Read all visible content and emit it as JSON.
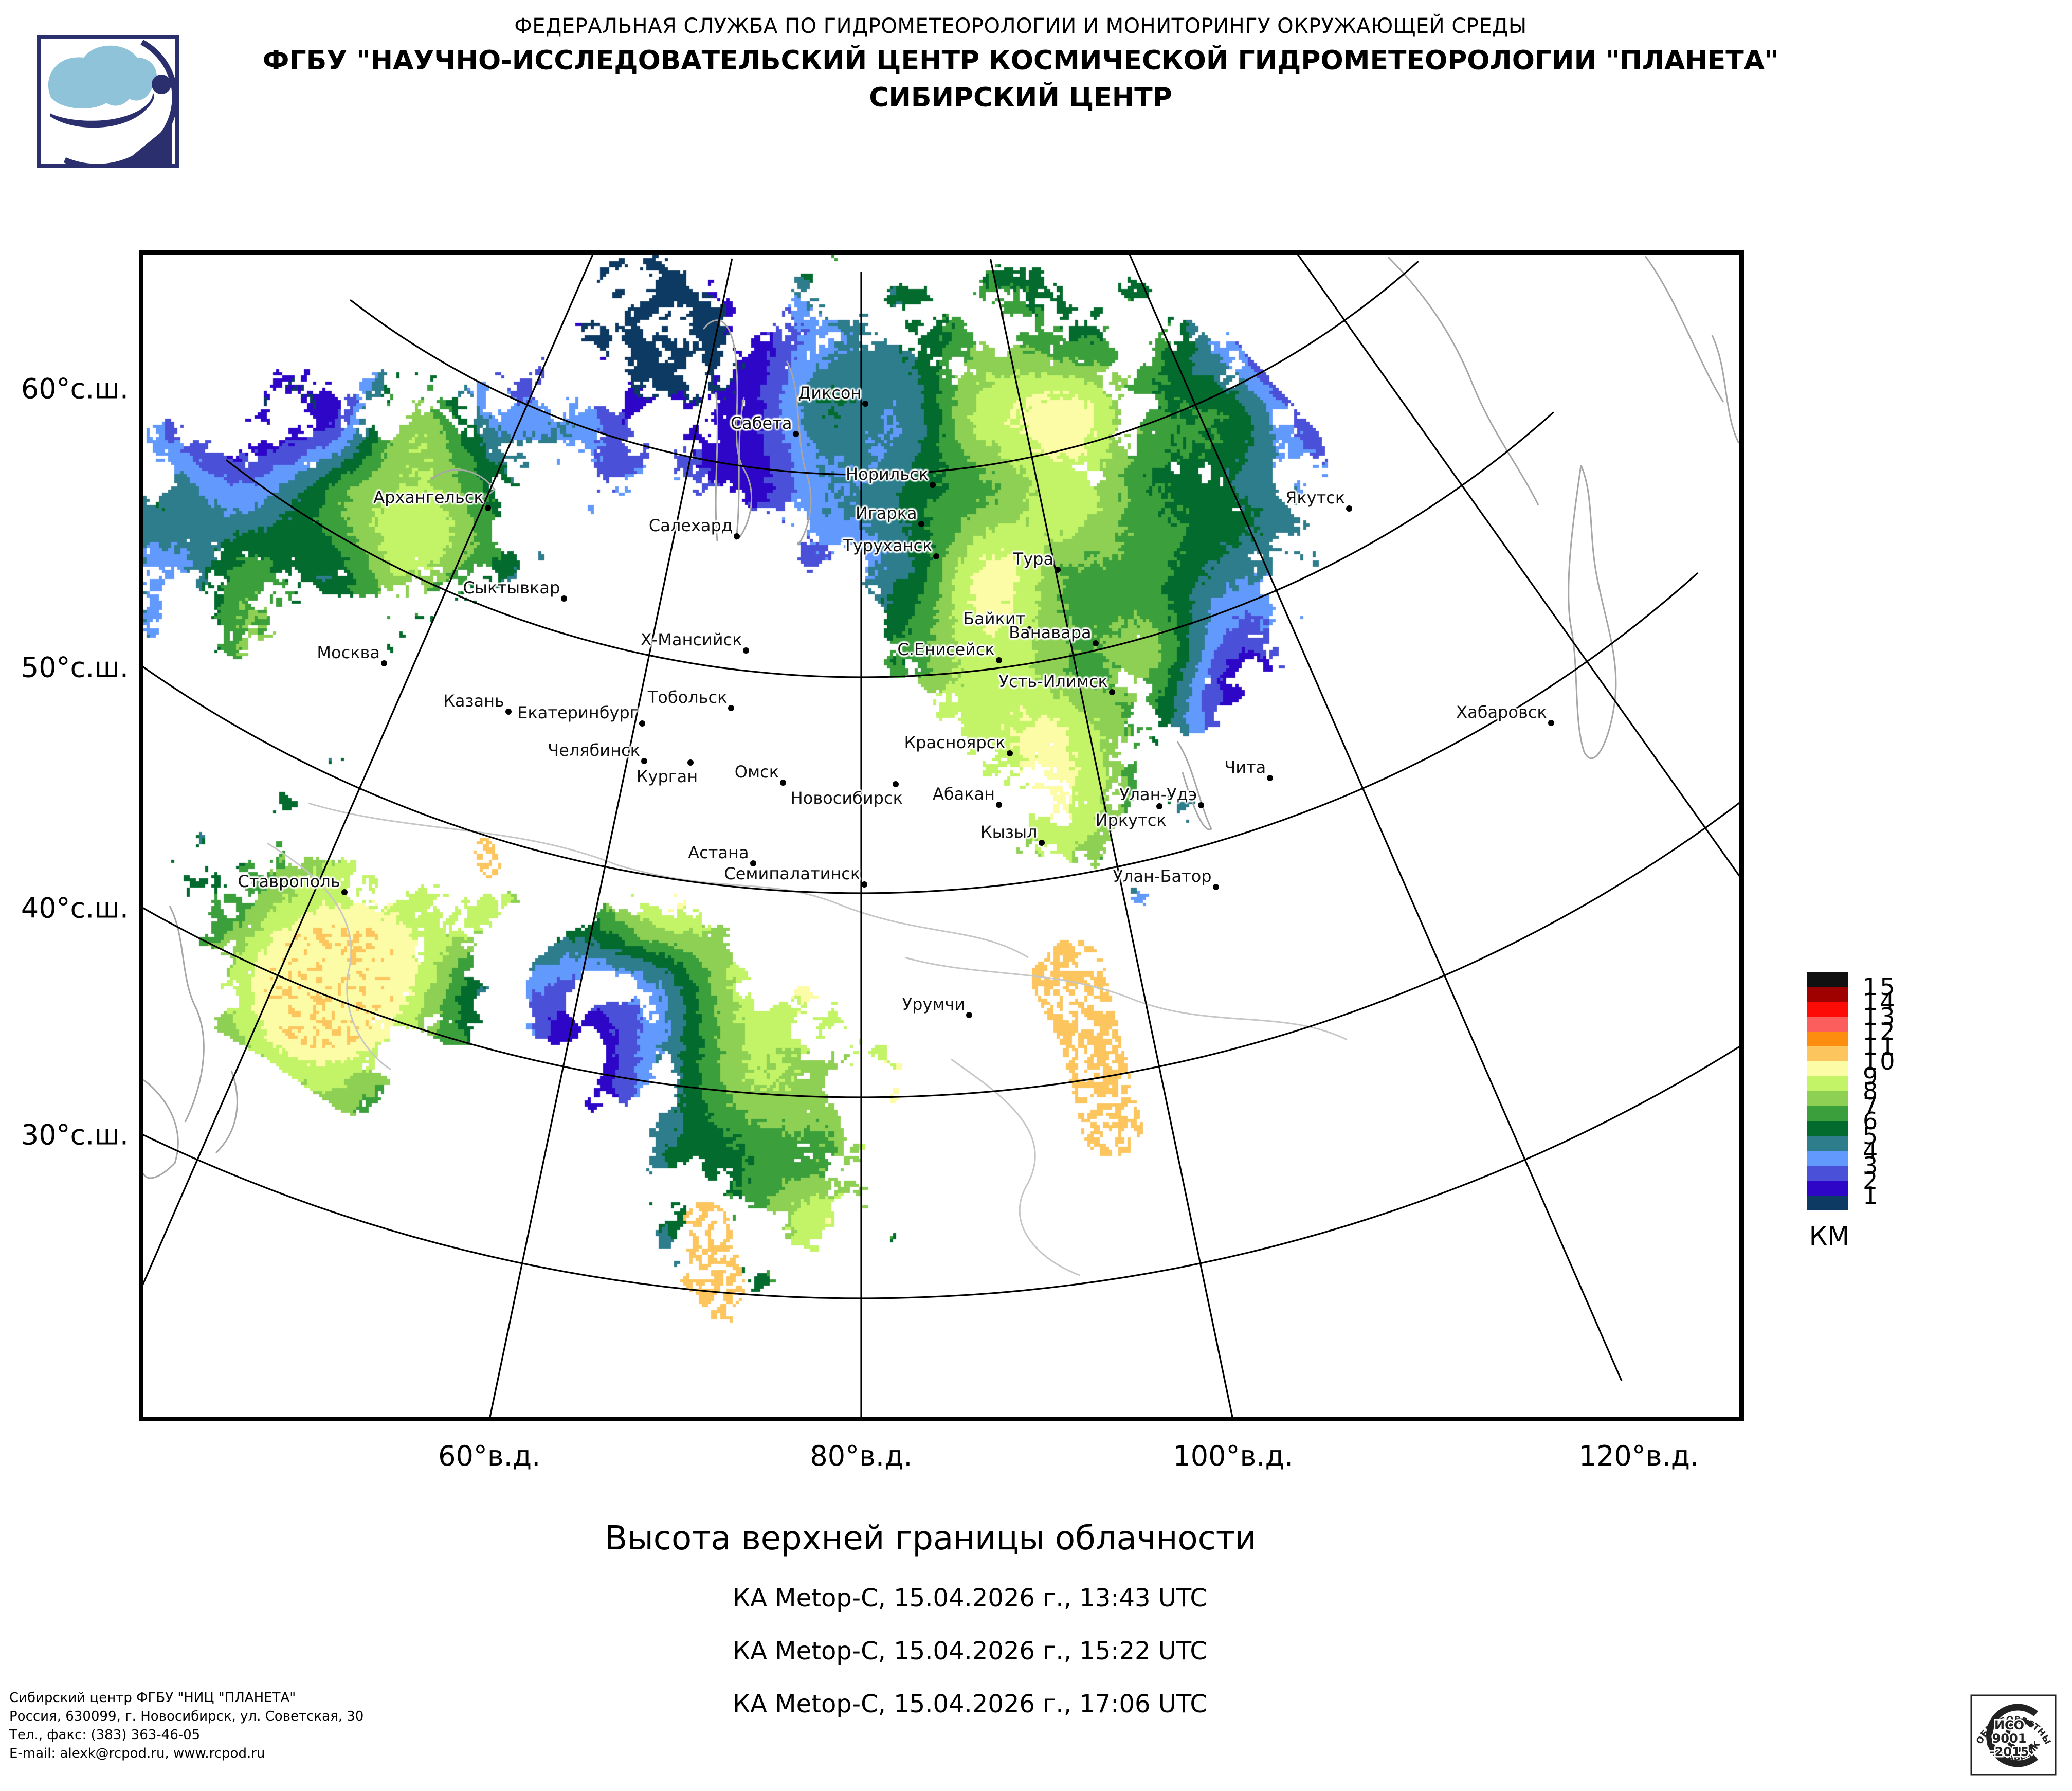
{
  "header": {
    "line1": "ФЕДЕРАЛЬНАЯ СЛУЖБА ПО ГИДРОМЕТЕОРОЛОГИИ И МОНИТОРИНГУ ОКРУЖАЮЩЕЙ СРЕДЫ",
    "line2": "ФГБУ \"НАУЧНО-ИССЛЕДОВАТЕЛЬСКИЙ ЦЕНТР КОСМИЧЕСКОЙ ГИДРОМЕТЕОРОЛОГИИ \"ПЛАНЕТА\"",
    "line3": "СИБИРСКИЙ ЦЕНТР"
  },
  "logo_colors": {
    "navy": "#2b2f6e",
    "light_blue": "#8ec3d9"
  },
  "map": {
    "lat_labels": [
      {
        "text": "60°с.ш.",
        "lat": 60
      },
      {
        "text": "50°с.ш.",
        "lat": 50
      },
      {
        "text": "40°с.ш.",
        "lat": 40
      },
      {
        "text": "30°с.ш.",
        "lat": 30
      }
    ],
    "lon_labels": [
      {
        "text": "60°в.д.",
        "lon": 60
      },
      {
        "text": "80°в.д.",
        "lon": 80
      },
      {
        "text": "100°в.д.",
        "lon": 100
      },
      {
        "text": "120°в.д.",
        "lon": 120
      }
    ],
    "cities": [
      {
        "name": "Диксон",
        "lat": 73.51,
        "lon": 80.55
      },
      {
        "name": "Сабета",
        "lat": 71.87,
        "lon": 72.06
      },
      {
        "name": "Норильск",
        "lat": 69.35,
        "lon": 88.2
      },
      {
        "name": "Игарка",
        "lat": 67.47,
        "lon": 86.58
      },
      {
        "name": "Туруханск",
        "lat": 65.8,
        "lon": 87.96
      },
      {
        "name": "Тура",
        "lat": 64.28,
        "lon": 100.22
      },
      {
        "name": "Якутск",
        "lat": 62.03,
        "lon": 129.73
      },
      {
        "name": "Архангельск",
        "lat": 64.55,
        "lon": 40.54
      },
      {
        "name": "Салехард",
        "lat": 66.53,
        "lon": 66.6
      },
      {
        "name": "Сыктывкар",
        "lat": 61.67,
        "lon": 50.81
      },
      {
        "name": "Байкит",
        "lat": 61.67,
        "lon": 96.37
      },
      {
        "name": "Ванавара",
        "lat": 60.34,
        "lon": 102.28
      },
      {
        "name": "Москва",
        "lat": 55.75,
        "lon": 37.62
      },
      {
        "name": "Х-Мансийск",
        "lat": 61.0,
        "lon": 69.0
      },
      {
        "name": "С.Енисейск",
        "lat": 60.37,
        "lon": 93.03
      },
      {
        "name": "Усть-Илимск",
        "lat": 57.94,
        "lon": 102.73
      },
      {
        "name": "Казань",
        "lat": 55.79,
        "lon": 49.11
      },
      {
        "name": "Екатеринбург",
        "lat": 56.84,
        "lon": 60.65
      },
      {
        "name": "Тобольск",
        "lat": 58.2,
        "lon": 68.25
      },
      {
        "name": "Хабаровск",
        "lat": 48.48,
        "lon": 135.08
      },
      {
        "name": "Челябинск",
        "lat": 55.15,
        "lon": 61.43
      },
      {
        "name": "Курган",
        "lat": 55.45,
        "lon": 65.35,
        "below": true
      },
      {
        "name": "Омск",
        "lat": 54.99,
        "lon": 73.37
      },
      {
        "name": "Красноярск",
        "lat": 56.01,
        "lon": 92.87
      },
      {
        "name": "Чита",
        "lat": 52.03,
        "lon": 113.5
      },
      {
        "name": "Новосибирск",
        "lat": 55.03,
        "lon": 82.92,
        "below": true
      },
      {
        "name": "Абакан",
        "lat": 53.72,
        "lon": 91.44
      },
      {
        "name": "Улан-Удэ",
        "lat": 51.83,
        "lon": 107.58
      },
      {
        "name": "Иркутск",
        "lat": 52.29,
        "lon": 104.3,
        "below": true
      },
      {
        "name": "Кызыл",
        "lat": 51.72,
        "lon": 94.45
      },
      {
        "name": "Ставрополь",
        "lat": 45.04,
        "lon": 41.97
      },
      {
        "name": "Астана",
        "lat": 51.17,
        "lon": 71.43
      },
      {
        "name": "Семипалатинск",
        "lat": 50.41,
        "lon": 80.25
      },
      {
        "name": "Улан-Батор",
        "lat": 47.89,
        "lon": 106.91
      },
      {
        "name": "Урумчи",
        "lat": 43.83,
        "lon": 87.62
      }
    ]
  },
  "legend": {
    "unit": "КМ",
    "values": [
      15,
      14,
      13,
      12,
      11,
      10,
      9,
      8,
      7,
      6,
      5,
      4,
      3,
      2,
      1
    ],
    "colors": [
      "#111111",
      "#9f0000",
      "#fc0b07",
      "#fc5e5e",
      "#fc8d0e",
      "#fcc55e",
      "#fcfca6",
      "#c3f467",
      "#8ed054",
      "#3b9f3b",
      "#026b2d",
      "#2d7d8d",
      "#619afc",
      "#4b50d8",
      "#2d06c8",
      "#0d3a63"
    ]
  },
  "captions": {
    "title": "Высота верхней границы облачности",
    "passes": [
      "КА Metop-C, 15.04.2026 г., 13:43 UTC",
      "КА Metop-C, 15.04.2026 г., 15:22 UTC",
      "КА Metop-C, 15.04.2026 г., 17:06 UTC"
    ]
  },
  "footer": {
    "lines": [
      "Сибирский центр ФГБУ \"НИЦ \"ПЛАНЕТА\"",
      "Россия, 630099, г. Новосибирск, ул. Советская, 30",
      "Тел., факс: (383) 363-46-05",
      "E-mail: alexk@rcpod.ru, www.rcpod.ru"
    ]
  },
  "stamp": {
    "top": "ДОБРОСОВЕСТНЫЙ",
    "center": [
      "ИСО",
      "9001",
      "-2015"
    ],
    "bottom": "ПОСТАВЩИК"
  }
}
